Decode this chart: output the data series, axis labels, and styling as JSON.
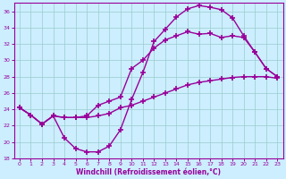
{
  "xlabel": "Windchill (Refroidissement éolien,°C)",
  "xlim": [
    -0.5,
    23.5
  ],
  "ylim": [
    18,
    37
  ],
  "xticks": [
    0,
    1,
    2,
    3,
    4,
    5,
    6,
    7,
    8,
    9,
    10,
    11,
    12,
    13,
    14,
    15,
    16,
    17,
    18,
    19,
    20,
    21,
    22,
    23
  ],
  "yticks": [
    18,
    20,
    22,
    24,
    26,
    28,
    30,
    32,
    34,
    36
  ],
  "bg_color": "#cceeff",
  "line_color": "#990099",
  "grid_color": "#99cccc",
  "line1_x": [
    0,
    1,
    2,
    3,
    4,
    5,
    6,
    7,
    8,
    9,
    10,
    11,
    12,
    13,
    14,
    15,
    16,
    17,
    18,
    19,
    20,
    21,
    22,
    23
  ],
  "line1_y": [
    24.2,
    23.3,
    22.2,
    23.2,
    20.5,
    19.2,
    18.8,
    18.8,
    19.5,
    21.5,
    25.2,
    28.5,
    32.3,
    33.8,
    35.3,
    36.3,
    36.7,
    36.5,
    36.2,
    35.2,
    33.0,
    31.0,
    29.0,
    28.0
  ],
  "line2_x": [
    0,
    1,
    2,
    3,
    4,
    5,
    6,
    7,
    8,
    9,
    10,
    11,
    12,
    13,
    14,
    15,
    16,
    17,
    18,
    19,
    20,
    21,
    22,
    23
  ],
  "line2_y": [
    24.2,
    23.3,
    22.2,
    23.2,
    23.0,
    23.0,
    23.0,
    23.2,
    23.5,
    24.2,
    24.5,
    25.0,
    25.5,
    26.0,
    26.5,
    27.0,
    27.3,
    27.5,
    27.7,
    27.9,
    28.0,
    28.0,
    28.0,
    27.8
  ],
  "line3_x": [
    0,
    1,
    2,
    3,
    4,
    5,
    6,
    7,
    8,
    9,
    10,
    11,
    12,
    13,
    14,
    15,
    16,
    17,
    18,
    19,
    20,
    21,
    22,
    23
  ],
  "line3_y": [
    24.2,
    23.3,
    22.2,
    23.2,
    23.0,
    23.0,
    23.2,
    24.5,
    25.0,
    25.5,
    29.0,
    30.0,
    31.5,
    32.5,
    33.0,
    33.5,
    33.2,
    33.3,
    32.8,
    33.0,
    32.8,
    31.0,
    29.0,
    28.0
  ],
  "marker": "+",
  "markersize": 4,
  "linewidth": 1.0
}
